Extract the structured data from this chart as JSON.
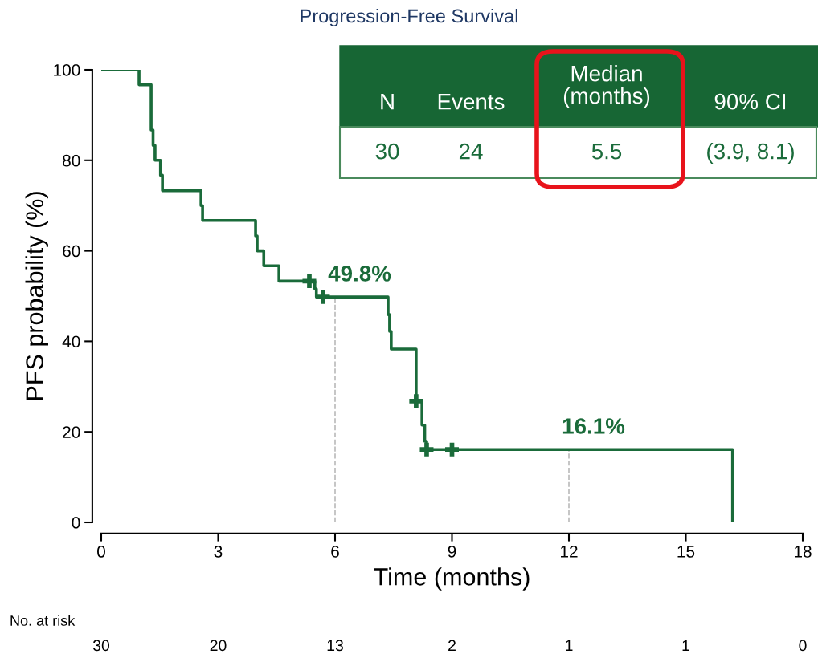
{
  "chart_data": {
    "type": "step",
    "title": "Progression-Free Survival",
    "xlabel": "Time (months)",
    "ylabel": "PFS probability (%)",
    "xlim": [
      0,
      18
    ],
    "xticks": [
      0,
      3,
      6,
      9,
      12,
      15,
      18
    ],
    "ylim": [
      0,
      100
    ],
    "yticks": [
      0,
      20,
      40,
      60,
      80,
      100
    ],
    "grid": false,
    "legend": false,
    "series": [
      {
        "color": "#1a6b3a",
        "x": [
          0,
          0.97,
          1.28,
          1.33,
          1.38,
          1.52,
          1.57,
          2.56,
          2.6,
          3.96,
          4.0,
          4.17,
          4.56,
          5.48,
          5.52,
          7.36,
          7.4,
          7.44,
          8.08,
          8.23,
          8.3,
          8.35,
          16.2
        ],
        "values": [
          100,
          96.7,
          86.7,
          83.3,
          80,
          76.7,
          73.3,
          70,
          66.7,
          63.3,
          60,
          56.7,
          53.3,
          51.6,
          49.8,
          45.9,
          42.2,
          38.3,
          26.8,
          21.5,
          17.9,
          16.1,
          0
        ]
      },
      {
        "type": "scatter",
        "marker": "cross",
        "color": "#1a6b3a",
        "x": [
          5.34,
          5.69,
          8.08,
          8.35,
          9.0
        ],
        "values": [
          53.3,
          49.8,
          26.8,
          16.1,
          16.1
        ]
      }
    ],
    "ref_lines": [
      {
        "axis": "x",
        "value": 6,
        "color": "#bbbbbb",
        "line_style": "dashed"
      },
      {
        "axis": "x",
        "value": 12,
        "color": "#bbbbbb",
        "line_style": "dashed"
      }
    ],
    "annotations": [
      "N",
      "Events",
      "Median\n(months)",
      "90% CI",
      "30",
      "24",
      "5.5",
      "(3.9, 8.1)",
      "No. at risk",
      "30",
      "20",
      "13",
      "2",
      "1",
      "1",
      "0",
      {
        "text": "49.8%",
        "x": 6,
        "y": 49.8
      },
      {
        "text": "16.1%",
        "x": 12,
        "y": 16.1
      }
    ]
  }
}
